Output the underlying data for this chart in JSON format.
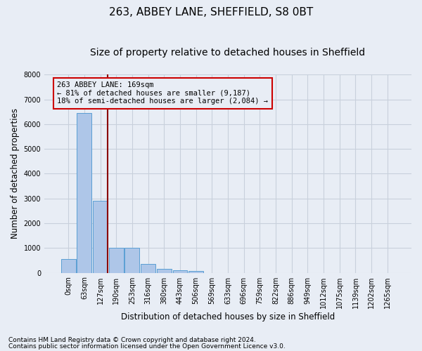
{
  "title_line1": "263, ABBEY LANE, SHEFFIELD, S8 0BT",
  "title_line2": "Size of property relative to detached houses in Sheffield",
  "xlabel": "Distribution of detached houses by size in Sheffield",
  "ylabel": "Number of detached properties",
  "footnote1": "Contains HM Land Registry data © Crown copyright and database right 2024.",
  "footnote2": "Contains public sector information licensed under the Open Government Licence v3.0.",
  "bar_labels": [
    "0sqm",
    "63sqm",
    "127sqm",
    "190sqm",
    "253sqm",
    "316sqm",
    "380sqm",
    "443sqm",
    "506sqm",
    "569sqm",
    "633sqm",
    "696sqm",
    "759sqm",
    "822sqm",
    "886sqm",
    "949sqm",
    "1012sqm",
    "1075sqm",
    "1139sqm",
    "1202sqm",
    "1265sqm"
  ],
  "bar_values": [
    550,
    6450,
    2900,
    1000,
    1000,
    350,
    150,
    100,
    70,
    0,
    0,
    0,
    0,
    0,
    0,
    0,
    0,
    0,
    0,
    0,
    0
  ],
  "bar_color": "#aec6e8",
  "bar_edge_color": "#5a9fd4",
  "grid_color": "#c8d0dc",
  "bg_color": "#e8edf5",
  "ylim": [
    0,
    8000
  ],
  "yticks": [
    0,
    1000,
    2000,
    3000,
    4000,
    5000,
    6000,
    7000,
    8000
  ],
  "vline_bin_index": 2,
  "vline_color": "#8b0000",
  "annotation_text": "263 ABBEY LANE: 169sqm\n← 81% of detached houses are smaller (9,187)\n18% of semi-detached houses are larger (2,084) →",
  "annotation_box_color": "#cc0000",
  "title_fontsize": 11,
  "subtitle_fontsize": 10,
  "label_fontsize": 8.5,
  "tick_fontsize": 7,
  "footnote_fontsize": 6.5
}
